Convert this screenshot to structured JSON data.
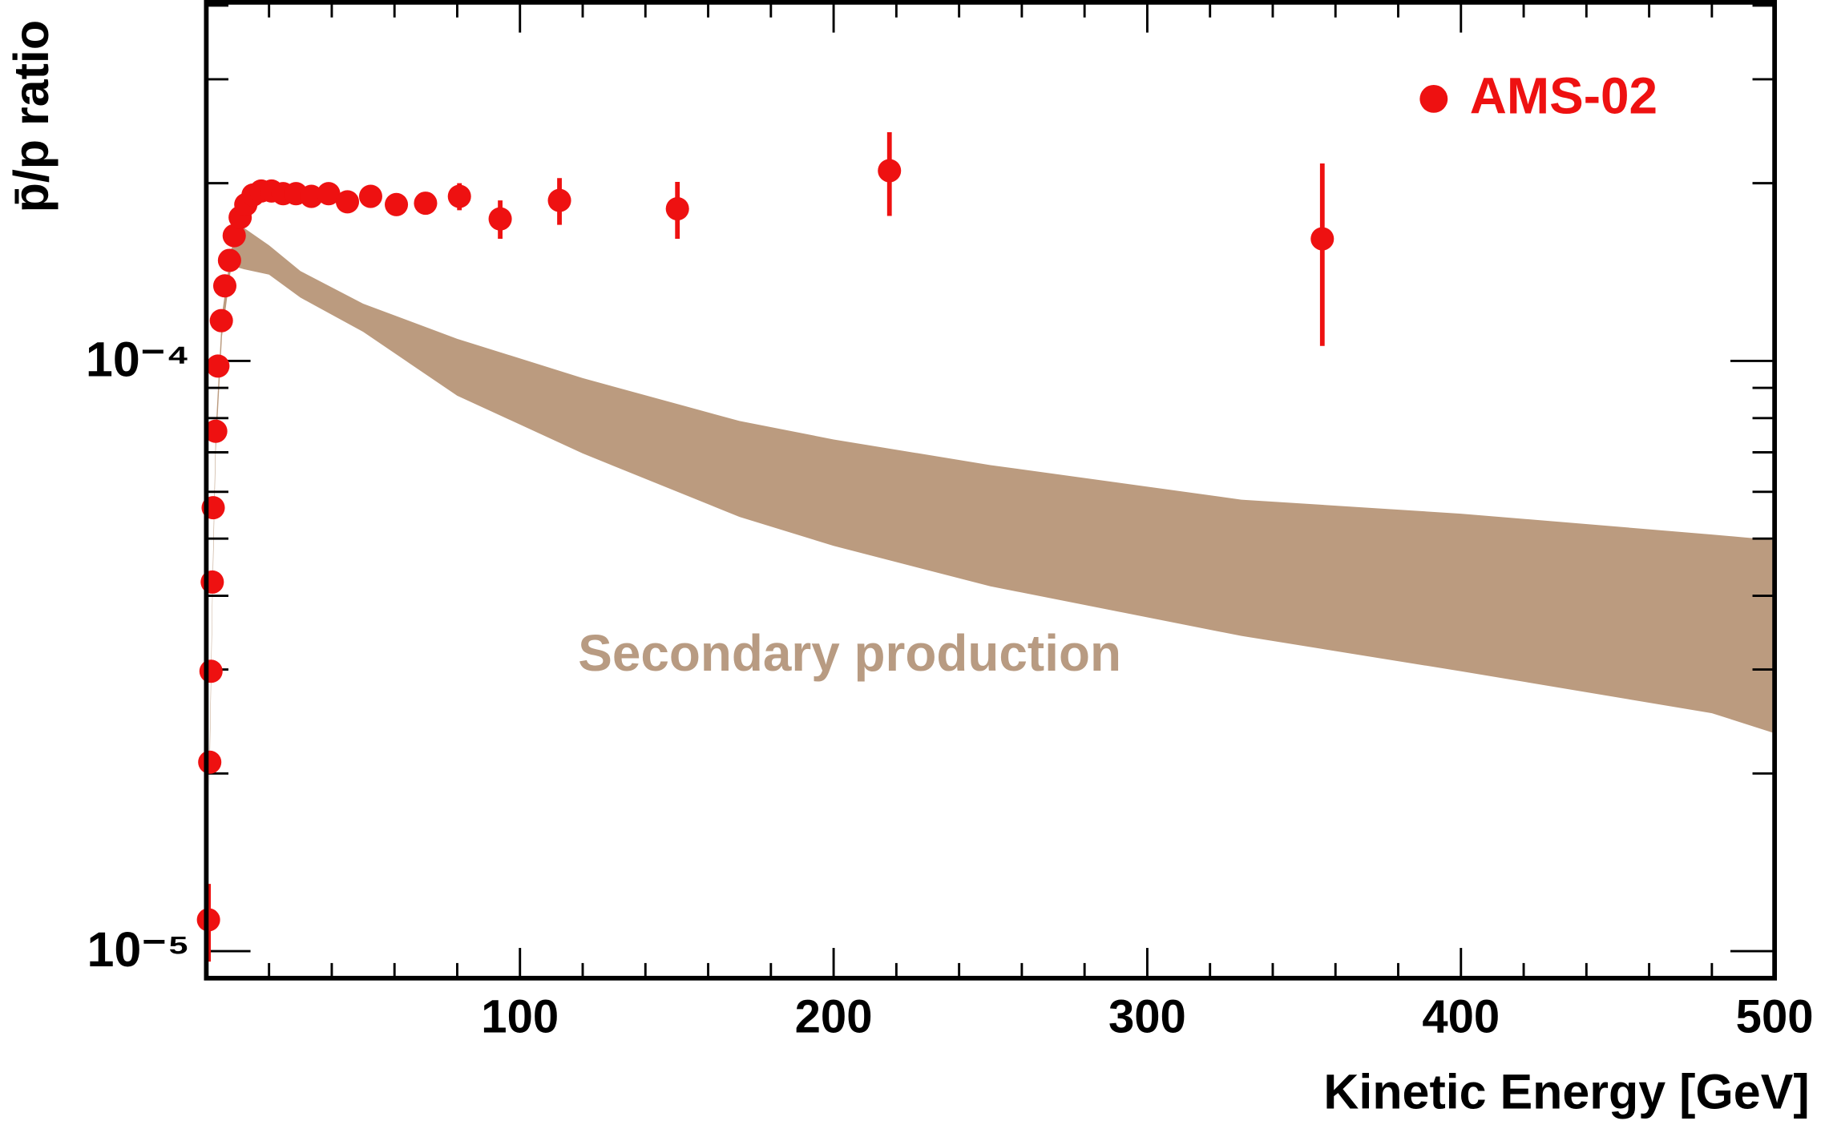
{
  "chart_data": {
    "type": "scatter",
    "ylog": true,
    "xlabel": "Kinetic Energy [GeV]",
    "ylabel": "p̄/p ratio",
    "xlim": [
      0,
      500
    ],
    "xticks": [
      100,
      200,
      300,
      400,
      500
    ],
    "xminorticks": [
      20,
      40,
      60,
      80,
      120,
      140,
      160,
      180,
      220,
      240,
      260,
      280,
      320,
      340,
      360,
      380,
      420,
      440,
      460,
      480
    ],
    "ylim": [
      9e-06,
      0.000405
    ],
    "yticks": [
      {
        "value": 1e-05,
        "label": "10⁻⁵"
      },
      {
        "value": 0.0001,
        "label": "10⁻⁴"
      }
    ],
    "yminorticks": [
      2e-05,
      3e-05,
      4e-05,
      5e-05,
      6e-05,
      7e-05,
      8e-05,
      9e-05,
      0.0002,
      0.0003,
      0.0004
    ],
    "legend": "top-right",
    "series": [
      {
        "name": "AMS-02",
        "color": "#ee1111",
        "x": [
          0.7,
          1.1,
          1.5,
          1.9,
          2.2,
          3.0,
          3.7,
          4.8,
          5.9,
          7.4,
          8.9,
          10.8,
          12.6,
          14.9,
          17.5,
          20.8,
          24.5,
          28.6,
          33.5,
          39.0,
          45.0,
          52.4,
          60.6,
          69.9,
          80.7,
          93.7,
          112.6,
          150.2,
          217.8,
          355.8
        ],
        "values": [
          1.13e-05,
          2.09e-05,
          2.98e-05,
          4.22e-05,
          5.64e-05,
          7.6e-05,
          9.8e-05,
          0.000117,
          0.000134,
          0.000148,
          0.000163,
          0.000175,
          0.000184,
          0.000191,
          0.000194,
          0.000194,
          0.000192,
          0.000192,
          0.00019,
          0.000192,
          0.000186,
          0.00019,
          0.000184,
          0.000185,
          0.00019,
          0.000174,
          0.000187,
          0.000181,
          0.00021,
          0.000161
        ],
        "errors": [
          1.7e-06,
          8e-07,
          8e-07,
          9e-07,
          1e-06,
          1.2e-06,
          1.4e-06,
          1.5e-06,
          1.6e-06,
          1.7e-06,
          1.8e-06,
          1.9e-06,
          2e-06,
          2e-06,
          2e-06,
          2e-06,
          2e-06,
          2e-06,
          2e-06,
          2e-06,
          3e-06,
          4e-06,
          7e-06,
          8e-06,
          1e-05,
          1.3e-05,
          1.7e-05,
          2e-05,
          3.4e-05,
          5.5e-05
        ]
      }
    ],
    "band": {
      "name": "Secondary production",
      "color": "#bb9b7f",
      "x": [
        1,
        2,
        3,
        5,
        8,
        12,
        20,
        30,
        50,
        80,
        120,
        170,
        200,
        250,
        330,
        400,
        480,
        500
      ],
      "upper": [
        2.1e-05,
        4.3e-05,
        7.6e-05,
        0.00012,
        0.000155,
        0.000168,
        0.000157,
        0.000142,
        0.000125,
        0.000109,
        9.35e-05,
        7.91e-05,
        7.36e-05,
        6.66e-05,
        5.82e-05,
        5.51e-05,
        5.08e-05,
        4.97e-05
      ],
      "lower": [
        1.9e-05,
        4e-05,
        7e-05,
        0.00011,
        0.000145,
        0.000143,
        0.00014,
        0.000128,
        0.000112,
        8.73e-05,
        6.97e-05,
        5.44e-05,
        4.86e-05,
        4.15e-05,
        3.42e-05,
        2.98e-05,
        2.53e-05,
        2.34e-05
      ]
    }
  }
}
